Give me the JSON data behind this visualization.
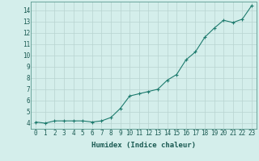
{
  "x": [
    0,
    1,
    2,
    3,
    4,
    5,
    6,
    7,
    8,
    9,
    10,
    11,
    12,
    13,
    14,
    15,
    16,
    17,
    18,
    19,
    20,
    21,
    22,
    23
  ],
  "y": [
    4.1,
    4.0,
    4.2,
    4.2,
    4.2,
    4.2,
    4.1,
    4.2,
    4.5,
    5.3,
    6.4,
    6.6,
    6.8,
    7.0,
    7.8,
    8.3,
    9.6,
    10.3,
    11.6,
    12.4,
    13.1,
    12.9,
    13.2,
    14.4
  ],
  "line_color": "#1e7b6e",
  "marker": "+",
  "marker_size": 3.5,
  "bg_color": "#d4eeeb",
  "grid_color": "#b8d4d0",
  "xlabel": "Humidex (Indice chaleur)",
  "xlim": [
    -0.5,
    23.5
  ],
  "ylim": [
    3.5,
    14.75
  ],
  "yticks": [
    4,
    5,
    6,
    7,
    8,
    9,
    10,
    11,
    12,
    13,
    14
  ],
  "xticks": [
    0,
    1,
    2,
    3,
    4,
    5,
    6,
    7,
    8,
    9,
    10,
    11,
    12,
    13,
    14,
    15,
    16,
    17,
    18,
    19,
    20,
    21,
    22,
    23
  ],
  "tick_label_fontsize": 5.5,
  "xlabel_fontsize": 6.5,
  "linewidth": 0.8,
  "marker_color": "#1e7b6e"
}
